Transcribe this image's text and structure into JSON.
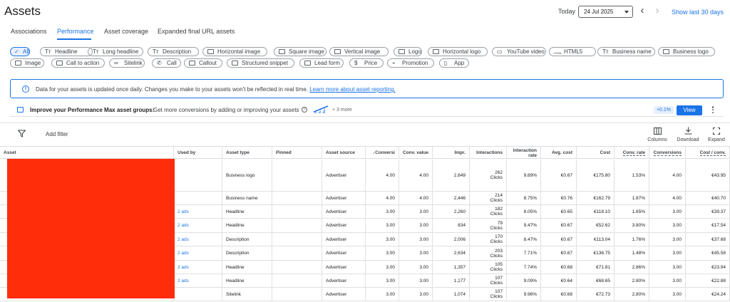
{
  "header": {
    "title": "Assets",
    "today_label": "Today",
    "date": "24 Jul 2025",
    "show_last": "Show last 30 days"
  },
  "tabs": [
    {
      "label": "Associations"
    },
    {
      "label": "Performance"
    },
    {
      "label": "Asset coverage"
    },
    {
      "label": "Expanded final URL assets"
    }
  ],
  "chips": [
    {
      "label": "All",
      "icon": "check-icon"
    },
    {
      "label": "Headline",
      "icon": "text-icon"
    },
    {
      "label": "Long headline",
      "icon": "text-icon"
    },
    {
      "label": "Description",
      "icon": "text-icon"
    },
    {
      "label": "Horizontal image",
      "icon": "image-icon"
    },
    {
      "label": "Square image",
      "icon": "image-icon"
    },
    {
      "label": "Vertical image",
      "icon": "image-icon"
    },
    {
      "label": "Logo",
      "icon": "image-icon"
    },
    {
      "label": "Horizontal logo",
      "icon": "image-icon"
    },
    {
      "label": "YouTube video",
      "icon": "video-icon"
    },
    {
      "label": "HTML5",
      "icon": "html-icon",
      "icon_text": "HTML"
    },
    {
      "label": "Business name",
      "icon": "text-icon"
    },
    {
      "label": "Business logo",
      "icon": "image-icon"
    },
    {
      "label": "Image",
      "icon": "image-icon"
    },
    {
      "label": "Call to action",
      "icon": "image-icon"
    },
    {
      "label": "Sitelink",
      "icon": "link-icon"
    },
    {
      "label": "Call",
      "icon": "phone-icon"
    },
    {
      "label": "Callout",
      "icon": "image-icon"
    },
    {
      "label": "Structured snippet",
      "icon": "image-icon"
    },
    {
      "label": "Lead form",
      "icon": "image-icon"
    },
    {
      "label": "Price",
      "icon": "price-icon"
    },
    {
      "label": "Promotion",
      "icon": "promotion-icon"
    },
    {
      "label": "App",
      "icon": "phone-device-icon"
    }
  ],
  "banner": {
    "text": "Data for your assets is updated once daily. Changes you make to your assets won't be reflected in real time.",
    "link": "Learn more about asset reporting."
  },
  "improve": {
    "title": "Improve your Performance Max asset groups:",
    "text": "Get more conversions by adding or improving your assets",
    "more": "+ 3 more",
    "uplift": "+0.1%",
    "view": "View"
  },
  "toolbar": {
    "add_filter": "Add filter",
    "columns": "Columns",
    "download": "Download",
    "expand": "Expand"
  },
  "table": {
    "columns": [
      "Asset",
      "Used by",
      "Asset type",
      "Pinned",
      "Asset source",
      "Conversi",
      "Conv. value",
      "Impr.",
      "Interactions",
      "Interaction rate",
      "Avg. cost",
      "Cost",
      "Conv. rate",
      "Conversions",
      "Cost / conv."
    ],
    "rows": [
      {
        "used_by": "",
        "type": "Business logo",
        "pinned": "",
        "source": "Advertiser",
        "conv": "4.00",
        "conv_value": "4.00",
        "impr": "2,649",
        "interactions": "262",
        "int_unit": "Clicks",
        "int_rate": "9.89%",
        "avg_cost": "€0.67",
        "cost": "€175.80",
        "conv_rate": "1.53%",
        "conversions": "4.00",
        "cost_conv": "€43.95"
      },
      {
        "used_by": "",
        "type": "Business name",
        "pinned": "",
        "source": "Advertiser",
        "conv": "4.00",
        "conv_value": "4.00",
        "impr": "2,446",
        "interactions": "214",
        "int_unit": "Clicks",
        "int_rate": "8.75%",
        "avg_cost": "€0.76",
        "cost": "€162.79",
        "conv_rate": "1.87%",
        "conversions": "4.00",
        "cost_conv": "€40.70"
      },
      {
        "used_by": "2 ads",
        "type": "Headline",
        "pinned": "",
        "source": "Advertiser",
        "conv": "3.00",
        "conv_value": "3.00",
        "impr": "2,260",
        "interactions": "182",
        "int_unit": "Clicks",
        "int_rate": "8.05%",
        "avg_cost": "€0.65",
        "cost": "€118.10",
        "conv_rate": "1.65%",
        "conversions": "3.00",
        "cost_conv": "€39.37"
      },
      {
        "used_by": "2 ads",
        "type": "Headline",
        "pinned": "",
        "source": "Advertiser",
        "conv": "3.00",
        "conv_value": "3.00",
        "impr": "834",
        "interactions": "79",
        "int_unit": "Clicks",
        "int_rate": "9.47%",
        "avg_cost": "€0.67",
        "cost": "€52.62",
        "conv_rate": "3.80%",
        "conversions": "3.00",
        "cost_conv": "€17.54"
      },
      {
        "used_by": "2 ads",
        "type": "Description",
        "pinned": "",
        "source": "Advertiser",
        "conv": "3.00",
        "conv_value": "3.00",
        "impr": "2,006",
        "interactions": "170",
        "int_unit": "Clicks",
        "int_rate": "8.47%",
        "avg_cost": "€0.67",
        "cost": "€113.04",
        "conv_rate": "1.76%",
        "conversions": "3.00",
        "cost_conv": "€37.68"
      },
      {
        "used_by": "2 ads",
        "type": "Description",
        "pinned": "",
        "source": "Advertiser",
        "conv": "3.00",
        "conv_value": "3.00",
        "impr": "2,634",
        "interactions": "203",
        "int_unit": "Clicks",
        "int_rate": "7.71%",
        "avg_cost": "€0.67",
        "cost": "€136.75",
        "conv_rate": "1.48%",
        "conversions": "3.00",
        "cost_conv": "€45.58"
      },
      {
        "used_by": "2 ads",
        "type": "Headline",
        "pinned": "",
        "source": "Advertiser",
        "conv": "3.00",
        "conv_value": "3.00",
        "impr": "1,357",
        "interactions": "105",
        "int_unit": "Clicks",
        "int_rate": "7.74%",
        "avg_cost": "€0.68",
        "cost": "€71.81",
        "conv_rate": "2.86%",
        "conversions": "3.00",
        "cost_conv": "€23.94"
      },
      {
        "used_by": "2 ads",
        "type": "Headline",
        "pinned": "",
        "source": "Advertiser",
        "conv": "3.00",
        "conv_value": "3.00",
        "impr": "1,177",
        "interactions": "107",
        "int_unit": "Clicks",
        "int_rate": "9.09%",
        "avg_cost": "€0.64",
        "cost": "€68.65",
        "conv_rate": "2.80%",
        "conversions": "3.00",
        "cost_conv": "€22.88"
      },
      {
        "used_by": "",
        "type": "Sitelink",
        "pinned": "",
        "source": "Advertiser",
        "conv": "3.00",
        "conv_value": "3.00",
        "impr": "1,074",
        "interactions": "107",
        "int_unit": "Clicks",
        "int_rate": "9.96%",
        "avg_cost": "€0.68",
        "cost": "€72.73",
        "conv_rate": "2.80%",
        "conversions": "3.00",
        "cost_conv": "€24.24"
      }
    ]
  },
  "colors": {
    "accent": "#1a73e8",
    "redaction": "#ff2d0a"
  }
}
